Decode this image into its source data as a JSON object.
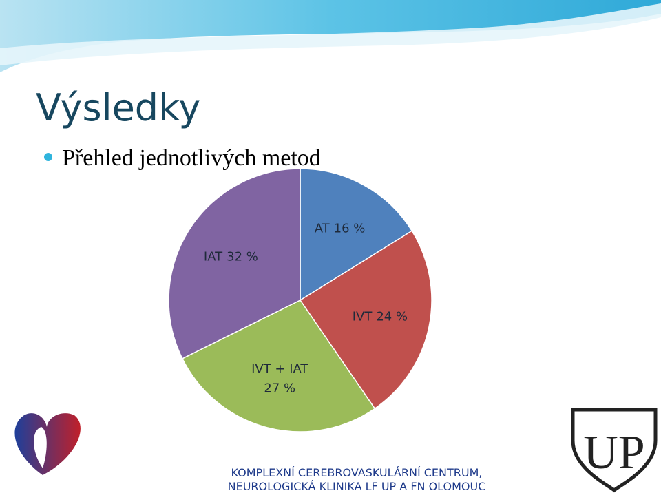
{
  "slide": {
    "title": "Výsledky",
    "bullet": "Přehled jednotlivých metod",
    "footer": [
      "KOMPLEXNÍ CEREBROVASKULÁRNÍ CENTRUM,",
      "NEUROLOGICKÁ KLINIKA LF UP A FN OLOMOUC"
    ]
  },
  "chart_data": {
    "type": "pie",
    "categories": [
      "AT",
      "IVT",
      "IVT + IAT",
      "IAT"
    ],
    "values": [
      16,
      24,
      27,
      32
    ],
    "value_labels": [
      "16 %",
      "24 %",
      "27 %",
      "32 %"
    ],
    "colors": [
      "#4f81bd",
      "#c0504d",
      "#9bbb59",
      "#8064a2"
    ]
  }
}
